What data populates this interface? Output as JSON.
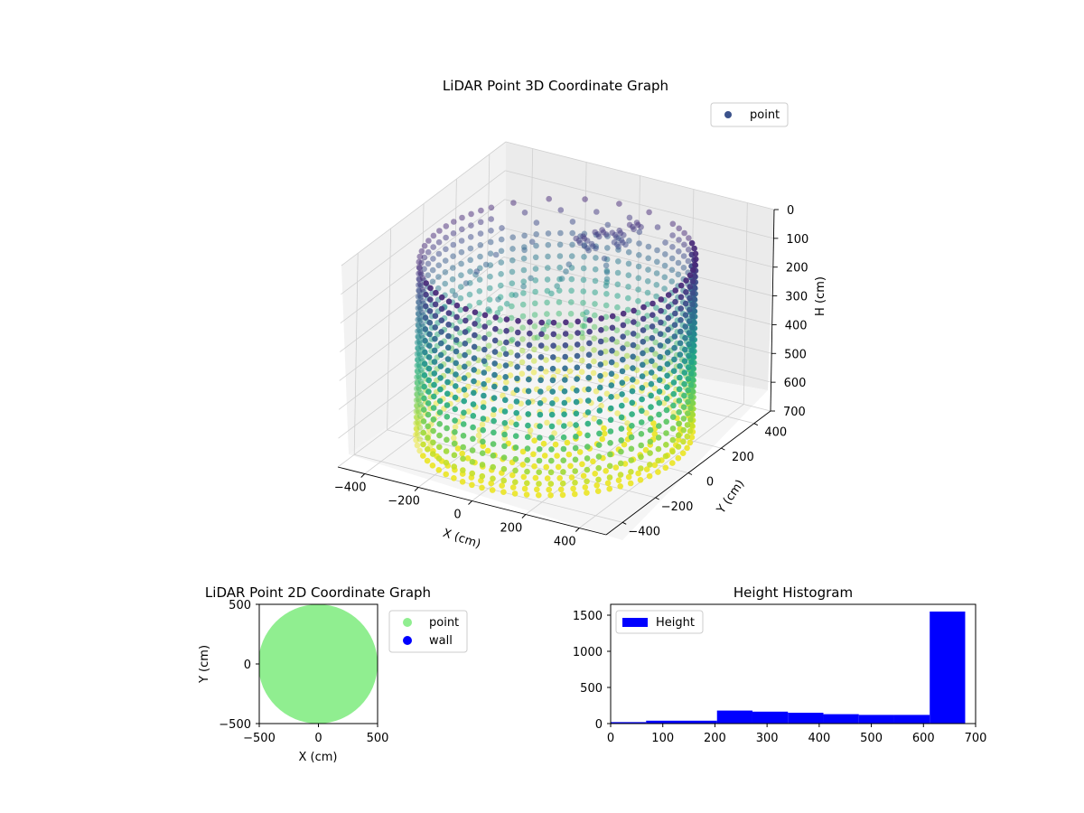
{
  "figure": {
    "chart_data": [
      {
        "type": "scatter",
        "projection": "3d",
        "title": "LiDAR Point 3D Coordinate Graph",
        "xlabel": "X (cm)",
        "ylabel": "Y (cm)",
        "zlabel": "H (cm)",
        "xlim": [
          -500,
          500
        ],
        "ylim": [
          -500,
          500
        ],
        "zlim": [
          0,
          700
        ],
        "zaxis_inverted": true,
        "xticks": [
          -400,
          -200,
          0,
          200,
          400
        ],
        "yticks": [
          -400,
          -200,
          0,
          200,
          400
        ],
        "zticks": [
          0,
          100,
          200,
          300,
          400,
          500,
          600,
          700
        ],
        "colormap": "viridis",
        "grid": true,
        "legend": {
          "placement": "top-right",
          "entries": [
            {
              "label": "point",
              "color": "#3b528b"
            }
          ]
        },
        "series": [
          {
            "name": "point",
            "shape": "cylindrical wall with floor",
            "wall_radius": 440,
            "wall_heights": [
              80,
              120,
              160,
              200,
              240,
              280,
              320,
              360,
              400,
              440,
              480,
              520,
              560,
              600,
              640,
              680
            ],
            "floor_height": 680,
            "floor_rings": [
              80,
              160,
              240,
              320,
              400
            ],
            "object_cluster": [
              {
                "x": -60,
                "y": 250,
                "h": 120
              },
              {
                "x": -20,
                "y": 300,
                "h": 110
              },
              {
                "x": 20,
                "y": 340,
                "h": 120
              },
              {
                "x": 60,
                "y": 380,
                "h": 100
              },
              {
                "x": -40,
                "y": 270,
                "h": 150
              },
              {
                "x": 40,
                "y": 320,
                "h": 140
              }
            ]
          }
        ]
      },
      {
        "type": "scatter",
        "title": "LiDAR Point 2D Coordinate Graph",
        "xlabel": "X (cm)",
        "ylabel": "Y (cm)",
        "xlim": [
          -500,
          500
        ],
        "ylim": [
          -500,
          500
        ],
        "xticks": [
          -500,
          0,
          500
        ],
        "yticks": [
          -500,
          0,
          500
        ],
        "legend": {
          "placement": "outside-right",
          "entries": [
            {
              "label": "point",
              "color": "#90ee90"
            },
            {
              "label": "wall",
              "color": "#0000ff"
            }
          ]
        },
        "series": [
          {
            "name": "point",
            "color": "#90ee90",
            "region": "disc radius 500 cm clipped to axes"
          },
          {
            "name": "wall",
            "color": "#0000ff",
            "points": []
          }
        ]
      },
      {
        "type": "bar",
        "histogram": true,
        "title": "Height Histogram",
        "xlim": [
          0,
          700
        ],
        "ylim": [
          0,
          1650
        ],
        "xticks": [
          0,
          100,
          200,
          300,
          400,
          500,
          600,
          700
        ],
        "yticks": [
          0,
          500,
          1000,
          1500
        ],
        "color": "#0000ff",
        "legend": {
          "placement": "top-left",
          "entries": [
            {
              "label": "Height",
              "color": "#0000ff"
            }
          ]
        },
        "bins": [
          {
            "x0": 0,
            "x1": 68,
            "count": 20
          },
          {
            "x0": 68,
            "x1": 136,
            "count": 40
          },
          {
            "x0": 136,
            "x1": 204,
            "count": 40
          },
          {
            "x0": 204,
            "x1": 272,
            "count": 180
          },
          {
            "x0": 272,
            "x1": 340,
            "count": 165
          },
          {
            "x0": 340,
            "x1": 408,
            "count": 150
          },
          {
            "x0": 408,
            "x1": 476,
            "count": 130
          },
          {
            "x0": 476,
            "x1": 544,
            "count": 120
          },
          {
            "x0": 544,
            "x1": 612,
            "count": 120
          },
          {
            "x0": 612,
            "x1": 680,
            "count": 1550
          }
        ]
      }
    ]
  }
}
